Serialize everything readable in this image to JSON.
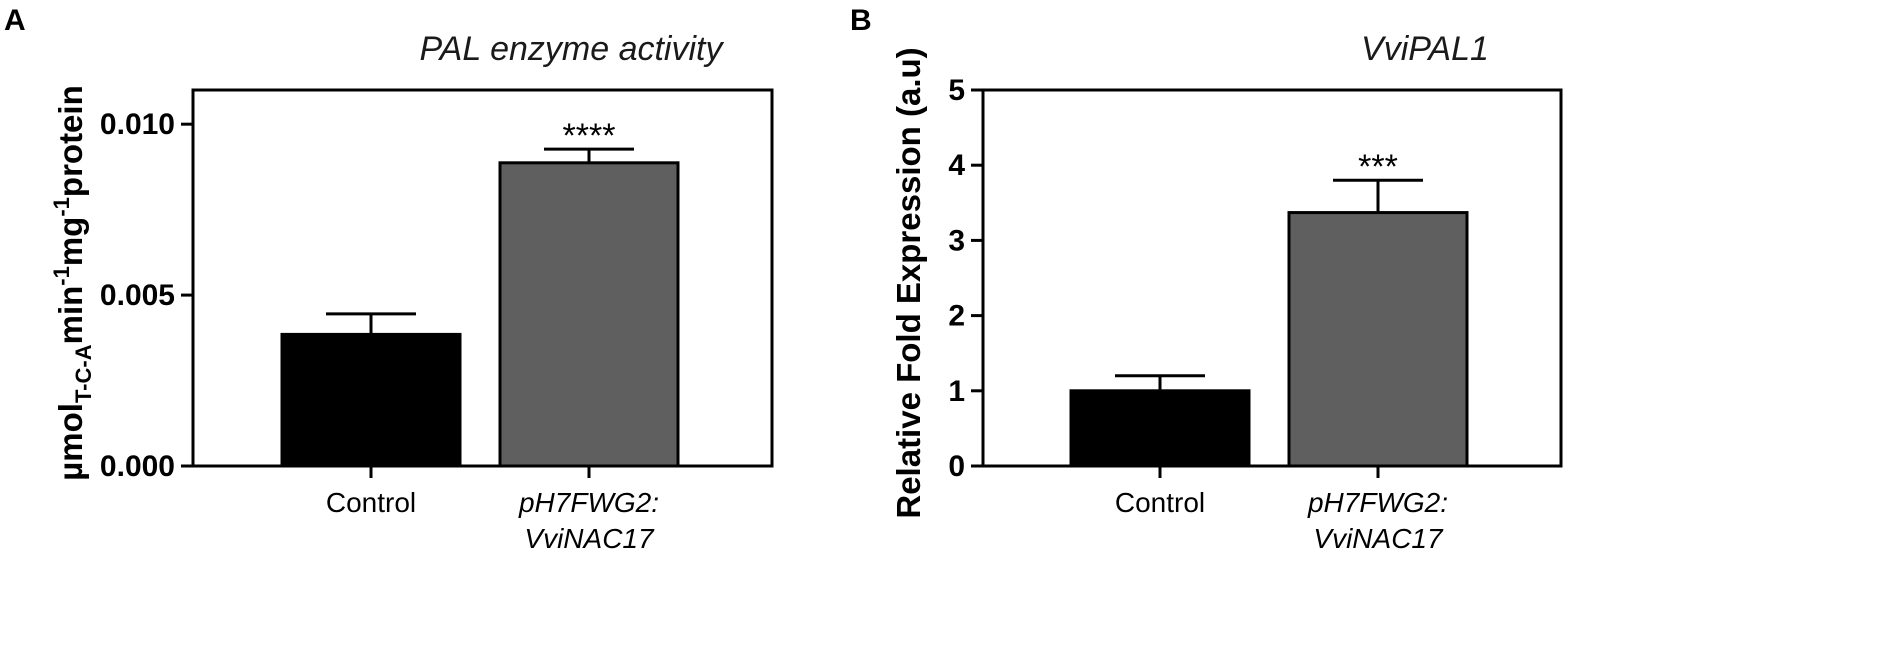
{
  "colors": {
    "control": "#000000",
    "treatment": "#5f5f5f",
    "axis": "#000000"
  },
  "chart_data": [
    {
      "panel": "A",
      "type": "bar",
      "title": "PAL enzyme activity",
      "ylabel_parts": {
        "base1": "µmol",
        "sub": "T-C-A",
        "base2": "min",
        "sup1": "-1",
        "base3": "mg",
        "sup2": "-1",
        "base4": "protein"
      },
      "ylim": [
        0,
        0.011
      ],
      "yticks": [
        0.0,
        0.005,
        0.01
      ],
      "ytick_labels": [
        "0.000",
        "0.005",
        "0.010"
      ],
      "categories": [
        {
          "line1": "Control",
          "line2": "",
          "italic": false
        },
        {
          "line1": "pH7FWG2:",
          "line2": "VviNAC17",
          "italic": true
        }
      ],
      "values": [
        0.00385,
        0.00887
      ],
      "errors": [
        0.0006,
        0.0004
      ],
      "significance": [
        "",
        "****"
      ],
      "bar_colors": [
        "#000000",
        "#5f5f5f"
      ]
    },
    {
      "panel": "B",
      "type": "bar",
      "title": "VviPAL1",
      "ylabel": "Relative Fold Expression (a.u)",
      "ylim": [
        0,
        5
      ],
      "yticks": [
        0,
        1,
        2,
        3,
        4,
        5
      ],
      "ytick_labels": [
        "0",
        "1",
        "2",
        "3",
        "4",
        "5"
      ],
      "categories": [
        {
          "line1": "Control",
          "line2": "",
          "italic": false
        },
        {
          "line1": "pH7FWG2:",
          "line2": "VviNAC17",
          "italic": true
        }
      ],
      "values": [
        1.0,
        3.37
      ],
      "errors": [
        0.2,
        0.43
      ],
      "significance": [
        "",
        "***"
      ],
      "bar_colors": [
        "#000000",
        "#5f5f5f"
      ]
    }
  ]
}
